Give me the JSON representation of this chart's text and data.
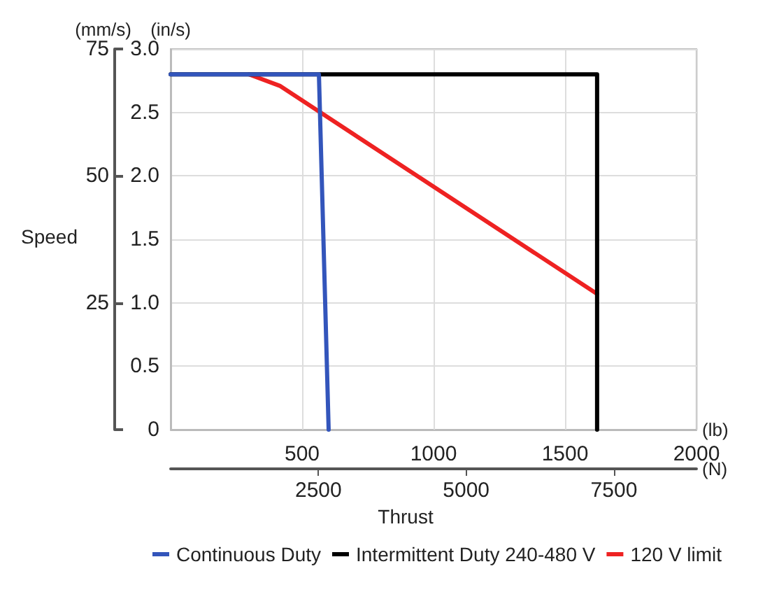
{
  "chart_data": {
    "type": "line",
    "xlabel": "(lb)",
    "ylabel": "(in/s)",
    "y2label": "(mm/s)",
    "x2label": "(N)",
    "annotations": [
      "Speed",
      "Thrust"
    ],
    "xlim": [
      0,
      2000
    ],
    "xticks": [
      500,
      1000,
      1500,
      2000
    ],
    "x2lim": [
      0,
      8896
    ],
    "x2ticks": [
      2500,
      5000,
      7500
    ],
    "ylim": [
      0,
      3
    ],
    "yticks": [
      0,
      0.5,
      {
        "value": 1,
        "label": "1.0"
      },
      1.5,
      {
        "value": 2,
        "label": "2.0"
      },
      2.5,
      {
        "value": 3,
        "label": "3.0"
      }
    ],
    "y2lim": [
      0,
      75
    ],
    "y2ticks": [
      {
        "value": 0,
        "label": null
      },
      25,
      50,
      75
    ],
    "grid": true,
    "legend": "bottom",
    "marker": "none",
    "line_style": "solid",
    "series": [
      {
        "name": "Continuous Duty",
        "color": "#3355bb",
        "x": [
          0,
          564,
          601
        ],
        "values": [
          2.8,
          2.8,
          0
        ]
      },
      {
        "name": "Intermittent Duty 240-480 V",
        "color": "#000000",
        "x": [
          0,
          1622,
          1622
        ],
        "values": [
          2.8,
          2.8,
          0
        ]
      },
      {
        "name": "120 V limit",
        "color": "#ee2222",
        "x": [
          298,
          415,
          1622
        ],
        "values": [
          2.8,
          2.71,
          1.07
        ]
      }
    ]
  }
}
